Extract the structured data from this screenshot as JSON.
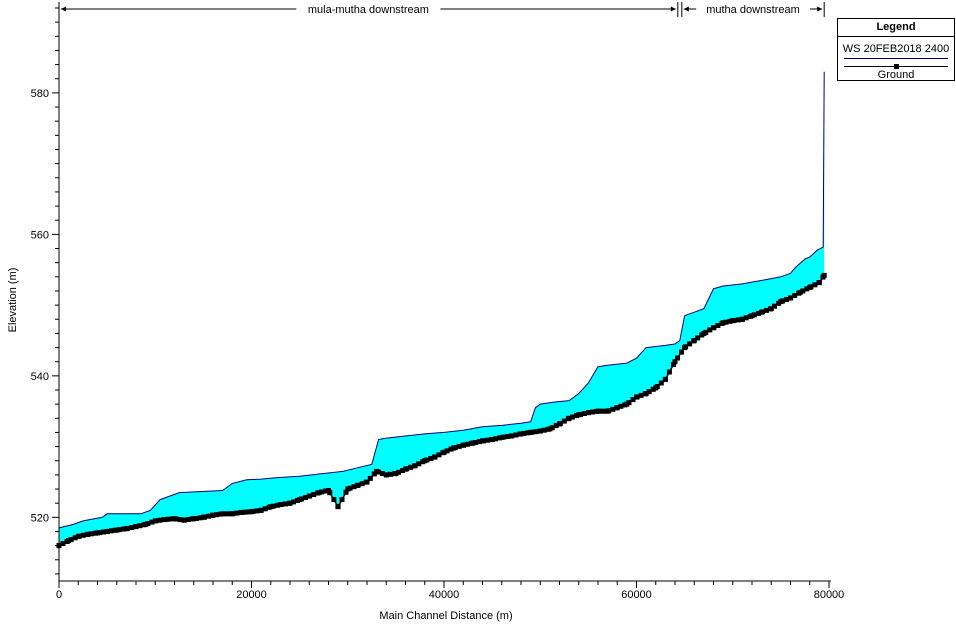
{
  "chart_data": {
    "type": "area",
    "title": "",
    "xlabel": "Main Channel Distance (m)",
    "ylabel": "Elevation (m)",
    "xlim": [
      0,
      80000
    ],
    "ylim": [
      511,
      592
    ],
    "x_ticks": [
      0,
      20000,
      40000,
      60000,
      80000
    ],
    "x_tick_labels": [
      "0",
      "20000",
      "40000",
      "60000",
      "80000"
    ],
    "y_ticks": [
      520,
      540,
      560,
      580
    ],
    "y_tick_labels": [
      "520",
      "540",
      "560",
      "580"
    ],
    "reaches": [
      {
        "name": "mula-mutha downstream",
        "x_start": 0,
        "x_end": 64500
      },
      {
        "name": "mutha downstream",
        "x_start": 64500,
        "x_end": 79500
      }
    ],
    "legend": {
      "title": "Legend",
      "position": "top-right",
      "entries": [
        "WS  20FEB2018 2400",
        "Ground"
      ]
    },
    "water_fill_color": "#00ffff",
    "ws_color": "#00007f",
    "ground_color": "#000000",
    "series": [
      {
        "name": "WS  20FEB2018 2400",
        "kind": "water_surface",
        "x": [
          0,
          1500,
          2500,
          4500,
          5000,
          8500,
          9500,
          10500,
          11500,
          12500,
          17000,
          18000,
          19500,
          21000,
          22500,
          25000,
          27500,
          29500,
          31000,
          32500,
          33200,
          34000,
          36000,
          38000,
          40000,
          42000,
          44000,
          46000,
          48000,
          49000,
          49500,
          50000,
          51500,
          53000,
          54000,
          55000,
          56000,
          57000,
          59000,
          60000,
          61000,
          63000,
          64000,
          64500,
          65000,
          66000,
          67000,
          68000,
          69000,
          71000,
          73000,
          75000,
          76000,
          76500,
          77500,
          78000,
          78800,
          79400,
          79500
        ],
        "y": [
          518.5,
          519.0,
          519.5,
          520.0,
          520.5,
          520.5,
          521.0,
          522.5,
          523.0,
          523.5,
          523.8,
          524.8,
          525.3,
          525.4,
          525.6,
          525.8,
          526.2,
          526.5,
          527.0,
          527.5,
          531.0,
          531.2,
          531.5,
          531.8,
          532.0,
          532.3,
          532.8,
          533.0,
          533.3,
          533.5,
          535.5,
          536.0,
          536.3,
          536.5,
          537.5,
          539.0,
          541.3,
          541.5,
          541.8,
          542.5,
          544.0,
          544.3,
          544.5,
          545.0,
          548.5,
          549.0,
          549.5,
          552.3,
          552.7,
          553.0,
          553.5,
          554.0,
          554.5,
          555.3,
          556.5,
          556.8,
          557.8,
          558.2,
          583.0
        ]
      },
      {
        "name": "Ground",
        "kind": "ground",
        "x": [
          0,
          1000,
          2000,
          3000,
          4000,
          5000,
          6000,
          7000,
          8000,
          9000,
          10000,
          11000,
          12000,
          13000,
          14000,
          15000,
          16000,
          17000,
          18000,
          19000,
          20000,
          21000,
          22000,
          23000,
          24000,
          25000,
          26000,
          27000,
          28000,
          29000,
          30000,
          31000,
          32000,
          33000,
          34000,
          35000,
          36000,
          37000,
          38000,
          39000,
          40000,
          41000,
          42000,
          43000,
          44000,
          45000,
          46000,
          47000,
          48000,
          49000,
          50000,
          51000,
          52000,
          53000,
          54000,
          55000,
          56000,
          57000,
          58000,
          59000,
          60000,
          61000,
          62000,
          63000,
          64000,
          65000,
          66000,
          67000,
          68000,
          69000,
          70000,
          71000,
          72000,
          73000,
          74000,
          75000,
          76000,
          77000,
          78000,
          79000,
          79500
        ],
        "y": [
          516.0,
          516.7,
          517.3,
          517.6,
          517.8,
          518.0,
          518.2,
          518.4,
          518.7,
          519.0,
          519.5,
          519.7,
          519.8,
          519.6,
          519.8,
          520.0,
          520.3,
          520.5,
          520.5,
          520.7,
          520.8,
          521.0,
          521.5,
          521.8,
          522.0,
          522.5,
          523.0,
          523.5,
          523.8,
          521.5,
          524.0,
          524.5,
          525.0,
          526.5,
          526.0,
          526.2,
          526.8,
          527.3,
          528.0,
          528.5,
          529.2,
          529.8,
          530.2,
          530.5,
          530.8,
          531.0,
          531.3,
          531.5,
          531.8,
          532.0,
          532.2,
          532.5,
          533.2,
          534.0,
          534.5,
          534.8,
          535.0,
          535.0,
          535.5,
          536.0,
          537.0,
          537.5,
          538.3,
          539.5,
          542.0,
          544.0,
          545.0,
          546.0,
          546.8,
          547.5,
          547.8,
          548.0,
          548.5,
          549.0,
          549.5,
          550.5,
          551.0,
          551.8,
          552.5,
          553.2,
          554.2
        ]
      }
    ],
    "annotations": [
      {
        "x": 29000,
        "y": 521.5,
        "text": ""
      },
      {
        "x": 43500,
        "y": 528.0,
        "text": ""
      }
    ]
  }
}
